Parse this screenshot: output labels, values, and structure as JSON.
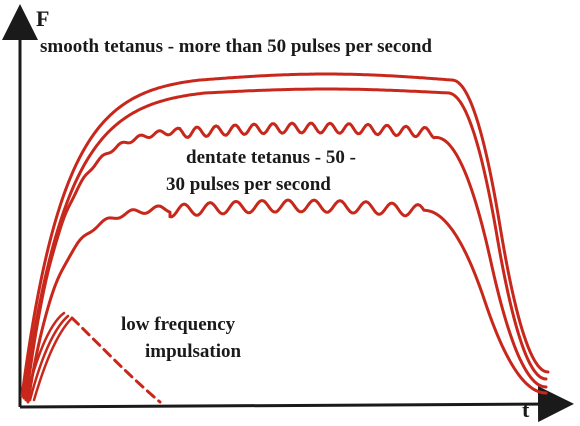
{
  "axes": {
    "y_label": "F",
    "x_label": "t"
  },
  "labels": {
    "smooth": "smooth tetanus - more than 50 pulses per second",
    "dentate_line1": "dentate tetanus -  50 -",
    "dentate_line2": "30 pulses per second",
    "low_line1": "low frequency",
    "low_line2": "impulsation"
  },
  "colors": {
    "curve": "#c8281c",
    "axis": "#1a1a1a"
  }
}
